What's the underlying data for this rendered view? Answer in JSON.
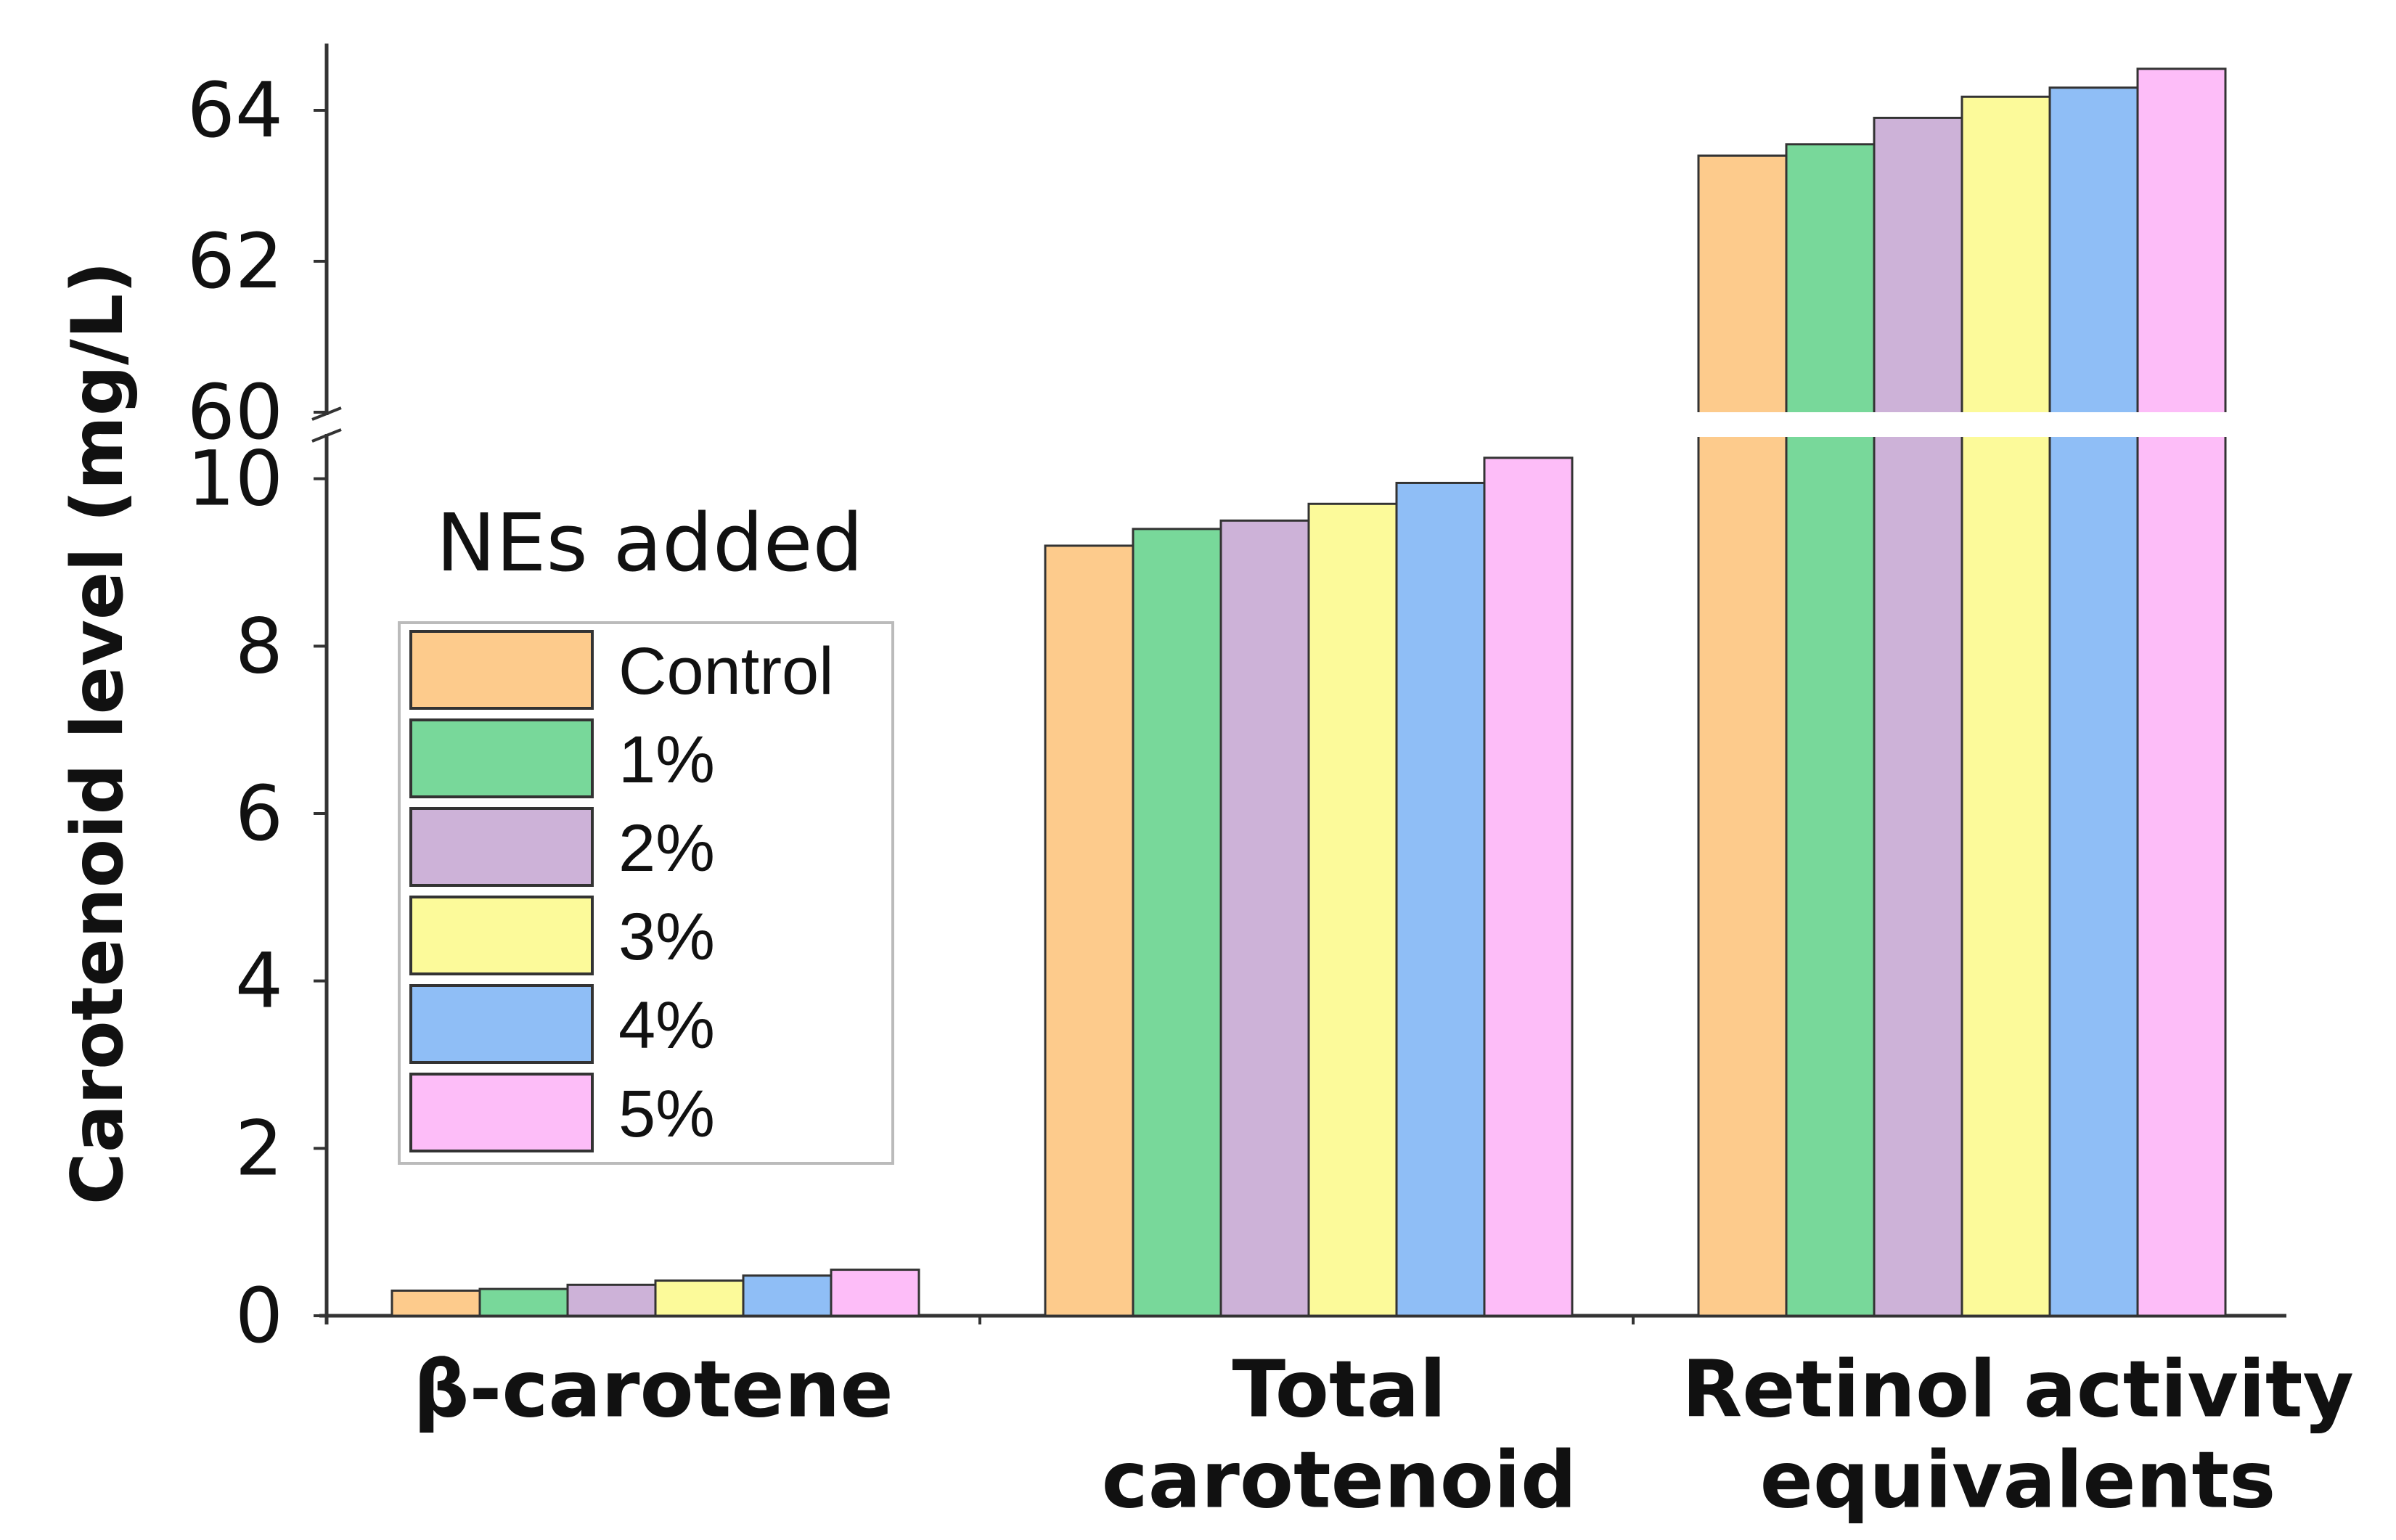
{
  "chart_data": {
    "type": "bar",
    "ylabel": "Carotenoid level (mg/L)",
    "xlabel": "",
    "categories": [
      {
        "lines": [
          "β-carotene"
        ]
      },
      {
        "lines": [
          "Total",
          "carotenoid"
        ]
      },
      {
        "lines": [
          "Retinol activity",
          "equivalents"
        ]
      }
    ],
    "y_axis": {
      "broken": true,
      "lower_segment_range": [
        0,
        10.5
      ],
      "upper_segment_range": [
        60,
        64.5
      ],
      "ticks": [
        0,
        2,
        4,
        6,
        8,
        10,
        60,
        62,
        64
      ],
      "tick_labels": [
        "0",
        "2",
        "4",
        "6",
        "8",
        "10",
        "60",
        "62",
        "64"
      ]
    },
    "legend": {
      "title": "NEs added",
      "placement": "left-middle"
    },
    "series": [
      {
        "name": "Control",
        "color": "#FDCB8C",
        "values": [
          0.3,
          9.2,
          63.4
        ]
      },
      {
        "name": "1%",
        "color": "#78D89A",
        "values": [
          0.32,
          9.4,
          63.55
        ]
      },
      {
        "name": "2%",
        "color": "#CDB2D8",
        "values": [
          0.37,
          9.5,
          63.9
        ]
      },
      {
        "name": "3%",
        "color": "#FCFA9A",
        "values": [
          0.42,
          9.7,
          64.18
        ]
      },
      {
        "name": "4%",
        "color": "#8FBEF6",
        "values": [
          0.48,
          9.95,
          64.3
        ]
      },
      {
        "name": "5%",
        "color": "#FDBDF8",
        "values": [
          0.55,
          10.25,
          64.55
        ]
      }
    ]
  }
}
